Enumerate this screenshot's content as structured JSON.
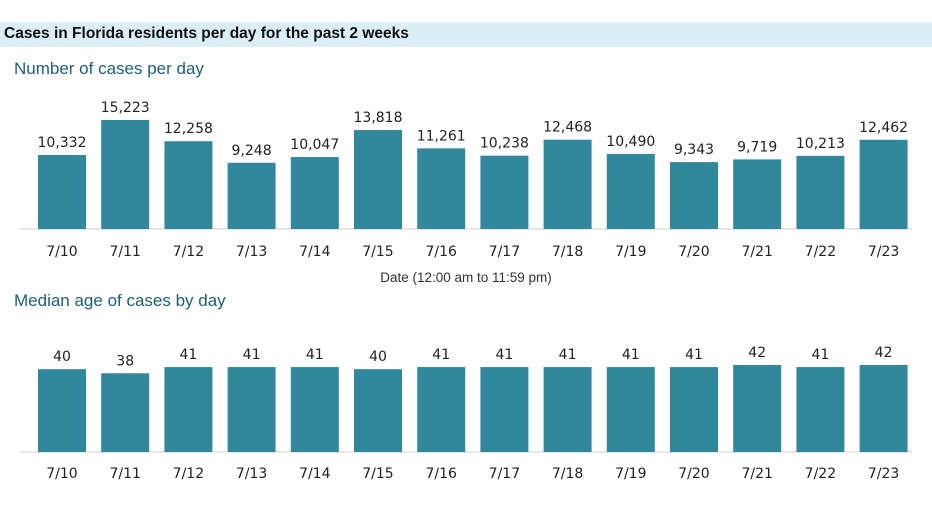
{
  "header": {
    "title": "Cases in Florida residents per day for the past 2 weeks"
  },
  "chart_data": [
    {
      "type": "bar",
      "title": "Number of cases per day",
      "xlabel": "Date (12:00 am to 11:59 pm)",
      "ylabel": "",
      "categories": [
        "7/10",
        "7/11",
        "7/12",
        "7/13",
        "7/14",
        "7/15",
        "7/16",
        "7/17",
        "7/18",
        "7/19",
        "7/20",
        "7/21",
        "7/22",
        "7/23"
      ],
      "values": [
        10332,
        15223,
        12258,
        9248,
        10047,
        13818,
        11261,
        10238,
        12468,
        10490,
        9343,
        9719,
        10213,
        12462
      ],
      "data_labels": [
        "10,332",
        "15,223",
        "12,258",
        "9,248",
        "10,047",
        "13,818",
        "11,261",
        "10,238",
        "12,468",
        "10,490",
        "9,343",
        "9,719",
        "10,213",
        "12,462"
      ],
      "ylim": [
        0,
        15223
      ],
      "grid": false,
      "bar_color": "#31879c"
    },
    {
      "type": "bar",
      "title": "Median age of cases by day",
      "xlabel": "",
      "ylabel": "",
      "categories": [
        "7/10",
        "7/11",
        "7/12",
        "7/13",
        "7/14",
        "7/15",
        "7/16",
        "7/17",
        "7/18",
        "7/19",
        "7/20",
        "7/21",
        "7/22",
        "7/23"
      ],
      "values": [
        40,
        38,
        41,
        41,
        41,
        40,
        41,
        41,
        41,
        41,
        41,
        42,
        41,
        42
      ],
      "data_labels": [
        "40",
        "38",
        "41",
        "41",
        "41",
        "40",
        "41",
        "41",
        "41",
        "41",
        "41",
        "42",
        "41",
        "42"
      ],
      "ylim": [
        0,
        42
      ],
      "grid": false,
      "bar_color": "#31879c"
    }
  ]
}
